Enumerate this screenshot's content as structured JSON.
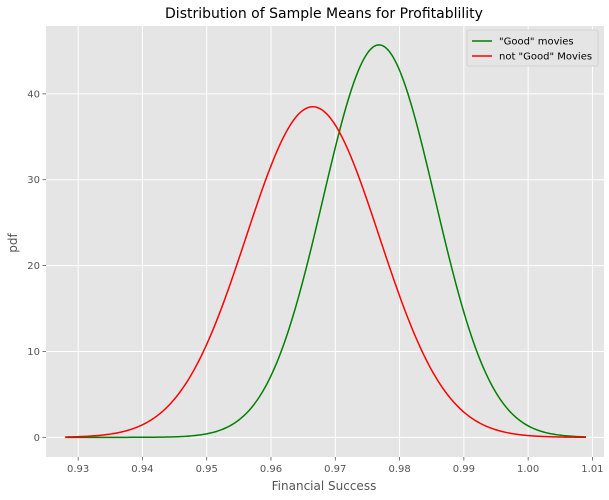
{
  "chart_data": {
    "type": "line",
    "title": "Distribution of Sample Means for Profitablility",
    "xlabel": "Financial Success",
    "ylabel": "pdf",
    "xlim": [
      0.925,
      1.0118
    ],
    "ylim": [
      -2.29,
      47.9
    ],
    "xticks": [
      0.93,
      0.94,
      0.95,
      0.96,
      0.97,
      0.98,
      0.99,
      1.0,
      1.01
    ],
    "yticks": [
      0,
      10,
      20,
      30,
      40
    ],
    "grid": true,
    "background": "#e5e5e5",
    "legend_position": "top-right",
    "x_range": [
      0.928,
      1.009
    ],
    "series": [
      {
        "name": "\"Good\" movies",
        "color": "#008000",
        "distribution": "normal",
        "mean": 0.9768,
        "peak": 45.7,
        "std": 0.00873
      },
      {
        "name": "not \"Good\" Movies",
        "color": "#ff0000",
        "distribution": "normal",
        "mean": 0.9665,
        "peak": 38.5,
        "std": 0.01036
      }
    ]
  }
}
